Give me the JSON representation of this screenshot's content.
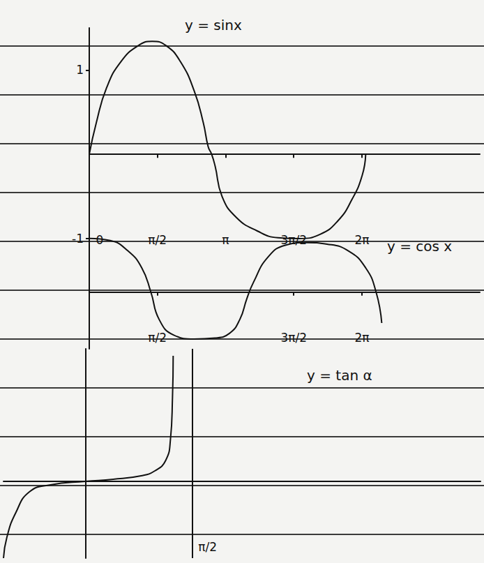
{
  "chart_data": [
    {
      "type": "line",
      "title": "y = sinx",
      "color": "#111111",
      "marker": "none",
      "line_style": "solid",
      "grid": false,
      "x": [
        0,
        0.16,
        0.4,
        0.73,
        1.13,
        1.45,
        1.77,
        2.1,
        2.42,
        2.63,
        2.74,
        2.82,
        2.9,
        3.06,
        3.39,
        3.87,
        4.35,
        4.84,
        5.32,
        5.73,
        6.05,
        6.29,
        6.37
      ],
      "values": [
        0,
        0.37,
        0.79,
        1.1,
        1.29,
        1.34,
        1.29,
        1.1,
        0.75,
        0.37,
        0.09,
        0,
        -0.14,
        -0.5,
        -0.75,
        -0.91,
        -0.99,
        -1.0,
        -0.95,
        -0.79,
        -0.54,
        -0.25,
        0
      ],
      "xlim": [
        0,
        9
      ],
      "xticks": [
        0,
        {
          "value": 1.5708,
          "label": "π/2"
        },
        {
          "value": 3.1416,
          "label": "π"
        },
        {
          "value": 4.7124,
          "label": "3π/2"
        },
        {
          "value": 6.2832,
          "label": "2π"
        }
      ],
      "ylim": [
        -1.15,
        1.5
      ],
      "yticks": [
        -1,
        1
      ]
    },
    {
      "type": "line",
      "title": "y = cos x",
      "color": "#111111",
      "marker": "none",
      "line_style": "solid",
      "grid": false,
      "tick_labels": "x",
      "x": [
        0,
        0.48,
        0.89,
        1.21,
        1.42,
        1.61,
        1.94,
        2.42,
        2.9,
        3.23,
        3.47,
        3.63,
        3.79,
        4.11,
        4.52,
        5.0,
        5.48,
        5.97,
        6.37,
        6.61,
        6.74
      ],
      "values": [
        1.04,
        1.0,
        0.8,
        0.47,
        0,
        -0.53,
        -0.83,
        -0.91,
        -0.89,
        -0.8,
        -0.53,
        -0.13,
        0.2,
        0.67,
        0.91,
        0.96,
        0.93,
        0.8,
        0.47,
        0,
        -0.6
      ],
      "xlim": [
        0,
        9
      ],
      "xticks": [
        {
          "value": 1.5708,
          "label": "π/2"
        },
        {
          "value": 4.7124,
          "label": "3π/2"
        },
        {
          "value": 6.2832,
          "label": "2π"
        }
      ],
      "ylim": [
        -1.1,
        1.2
      ],
      "yticks": []
    },
    {
      "type": "line",
      "title": "y = tan α",
      "color": "#111111",
      "marker": "none",
      "line_style": "solid",
      "grid": false,
      "tick_labels": "x",
      "x": [
        -1.2,
        -1.15,
        -1.02,
        -0.82,
        -0.51,
        0,
        0.41,
        0.82,
        1.02,
        1.18,
        1.25,
        1.28,
        1.29
      ],
      "values": [
        -2.2,
        -1.6,
        -0.9,
        -0.3,
        -0.1,
        0,
        0.06,
        0.16,
        0.3,
        0.6,
        1.2,
        2.4,
        3.6
      ],
      "asymptotes": [
        1.5708
      ],
      "xlim": [
        -1.2,
        5.8
      ],
      "xticks": [
        {
          "value": 1.5708,
          "label": "π/2"
        }
      ],
      "ylim": [
        -2.2,
        3.8
      ],
      "yticks": []
    }
  ]
}
